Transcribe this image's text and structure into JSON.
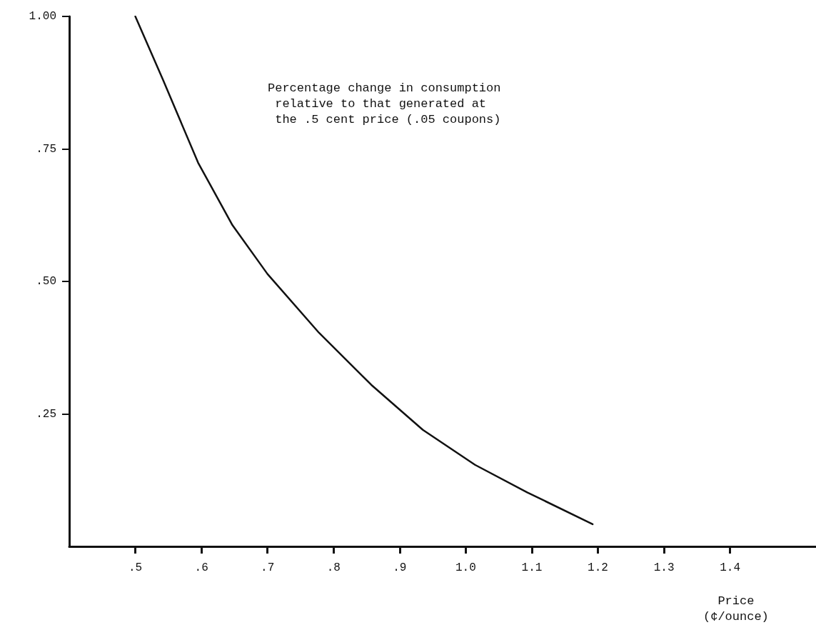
{
  "chart_data": {
    "type": "line",
    "xlabel": "Price\n(¢/ounce)",
    "annotations": [
      "Percentage change in consumption\n relative to that generated at\n the .5 cent price (.05 coupons)"
    ],
    "x": [
      0.5,
      0.542,
      0.595,
      0.647,
      0.7,
      0.778,
      0.857,
      0.935,
      1.014,
      1.093,
      1.192
    ],
    "series": [
      {
        "color": "#111111",
        "values": [
          1.0,
          0.88,
          0.724,
          0.606,
          0.514,
          0.403,
          0.305,
          0.22,
          0.154,
          0.102,
          0.042
        ]
      }
    ],
    "xlim": [
      0.4,
      1.53
    ],
    "xticks": [
      {
        "value": 0.5,
        "label": ".5"
      },
      {
        "value": 0.6,
        "label": ".6"
      },
      {
        "value": 0.7,
        "label": ".7"
      },
      {
        "value": 0.8,
        "label": ".8"
      },
      {
        "value": 0.9,
        "label": ".9"
      },
      {
        "value": 1.0,
        "label": "1.0"
      },
      {
        "value": 1.1,
        "label": "1.1"
      },
      {
        "value": 1.2,
        "label": "1.2"
      },
      {
        "value": 1.3,
        "label": "1.3"
      },
      {
        "value": 1.4,
        "label": "1.4"
      }
    ],
    "ylim": [
      0,
      1
    ],
    "yticks": [
      {
        "value": 0.25,
        "label": ".25"
      },
      {
        "value": 0.5,
        "label": ".50"
      },
      {
        "value": 0.75,
        "label": ".75"
      },
      {
        "value": 1.0,
        "label": "1.00"
      }
    ],
    "grid": false,
    "marker": "none",
    "line_style": "solid"
  }
}
